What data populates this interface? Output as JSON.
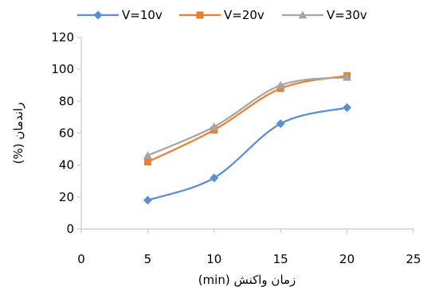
{
  "chart_data": {
    "type": "line",
    "x": [
      5,
      10,
      15,
      20
    ],
    "series": [
      {
        "name": "V=10v",
        "values": [
          18,
          32,
          66,
          76
        ],
        "color": "#5B8ED6",
        "marker": "diamond"
      },
      {
        "name": "V=20v",
        "values": [
          42,
          62,
          88,
          96
        ],
        "color": "#ED7D31",
        "marker": "square"
      },
      {
        "name": "V=30v",
        "values": [
          46,
          64,
          90,
          95
        ],
        "color": "#A5A5A5",
        "marker": "triangle"
      }
    ],
    "xlim": [
      0,
      25
    ],
    "ylim": [
      0,
      120
    ],
    "xticks": [
      0,
      5,
      10,
      15,
      20,
      25
    ],
    "yticks": [
      0,
      20,
      40,
      60,
      80,
      100,
      120
    ],
    "xlabel": "زمان واکنش (min)",
    "ylabel": "راندمان (%)",
    "title": "",
    "grid": false,
    "smooth": true,
    "legend": "top"
  }
}
